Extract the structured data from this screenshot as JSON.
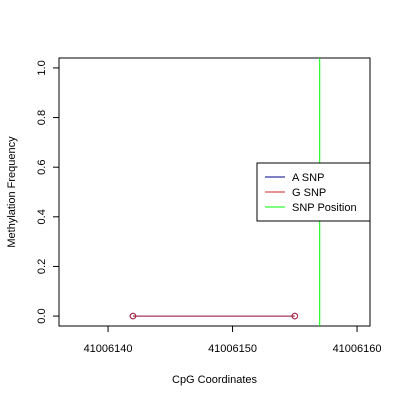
{
  "chart_data": {
    "type": "line",
    "xlabel": "CpG Coordinates",
    "ylabel": "Methylation Frequency",
    "x": [
      41006142,
      41006155
    ],
    "series": [
      {
        "name": "A SNP",
        "color": "#00008b",
        "values": [
          0,
          0
        ]
      },
      {
        "name": "G SNP",
        "color": "#cd2626",
        "values": [
          0,
          0
        ]
      }
    ],
    "vlines": [
      {
        "name": "SNP Position",
        "color": "#00ff00",
        "x": 41006157
      }
    ],
    "xlim": [
      41006136.06,
      41006161.04
    ],
    "ylim": [
      -0.04,
      1.04
    ],
    "xticks": [
      41006140,
      41006150,
      41006160
    ],
    "yticks": [
      {
        "value": 0,
        "label": "0.0"
      },
      {
        "value": 0.2,
        "label": "0.2"
      },
      {
        "value": 0.4,
        "label": "0.4"
      },
      {
        "value": 0.6,
        "label": "0.6"
      },
      {
        "value": 0.8,
        "label": "0.8"
      },
      {
        "value": 1,
        "label": "1.0"
      }
    ],
    "legend": "right"
  }
}
